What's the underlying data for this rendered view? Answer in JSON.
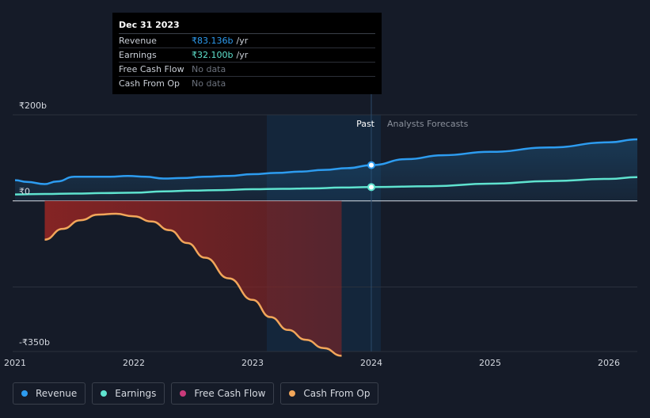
{
  "chart_data": {
    "type": "line",
    "title": "",
    "xlabel": "",
    "ylabel": "",
    "currency_symbol": "₹",
    "y_tick_labels": [
      "₹200b",
      "₹0",
      "-₹350b"
    ],
    "y_ticks": [
      200,
      0,
      -350
    ],
    "x_tick_labels": [
      "2021",
      "2022",
      "2023",
      "2024",
      "2025",
      "2026"
    ],
    "x_ticks": [
      2021,
      2022,
      2023,
      2024,
      2025,
      2026
    ],
    "xlim": [
      2020.98,
      2026.24
    ],
    "ylim": [
      -350,
      200
    ],
    "past_label": "Past",
    "forecast_label": "Analysts Forecasts",
    "forecast_start": 2024.0,
    "legend_position": "bottom-left",
    "series": [
      {
        "name": "Revenue",
        "color": "#2d9cf0",
        "x": [
          2021.0,
          2021.1,
          2021.25,
          2021.35,
          2021.5,
          2021.65,
          2021.8,
          2021.95,
          2022.1,
          2022.25,
          2022.4,
          2022.6,
          2022.8,
          2023.0,
          2023.2,
          2023.4,
          2023.6,
          2023.8,
          2024.0,
          2024.3,
          2024.6,
          2025.0,
          2025.5,
          2026.0,
          2026.24
        ],
        "y": [
          48,
          44,
          39,
          45,
          56,
          56,
          56,
          58,
          56,
          52,
          53,
          56,
          58,
          62,
          65,
          68,
          72,
          76,
          83,
          97,
          106,
          114,
          124,
          136,
          143
        ]
      },
      {
        "name": "Earnings",
        "color": "#5fe3cf",
        "x": [
          2021.0,
          2021.25,
          2021.5,
          2021.75,
          2022.0,
          2022.25,
          2022.5,
          2022.75,
          2023.0,
          2023.25,
          2023.5,
          2023.75,
          2024.0,
          2024.5,
          2025.0,
          2025.5,
          2026.0,
          2026.24
        ],
        "y": [
          15,
          16,
          17,
          18,
          19,
          22,
          24,
          25,
          27,
          28,
          29,
          31,
          32,
          34,
          40,
          46,
          51,
          55
        ]
      },
      {
        "name": "Free Cash Flow",
        "color": "#c93a7a",
        "x": [],
        "y": []
      },
      {
        "name": "Cash From Op",
        "color": "#f2a65a",
        "x": [
          2021.25,
          2021.4,
          2021.55,
          2021.7,
          2021.85,
          2022.0,
          2022.15,
          2022.3,
          2022.45,
          2022.6,
          2022.8,
          2023.0,
          2023.15,
          2023.3,
          2023.45,
          2023.6,
          2023.75
        ],
        "y": [
          -90,
          -65,
          -45,
          -32,
          -30,
          -36,
          -48,
          -68,
          -98,
          -132,
          -180,
          -230,
          -270,
          -300,
          -323,
          -342,
          -360
        ]
      }
    ]
  },
  "tooltip": {
    "date": "Dec 31 2023",
    "rows": [
      {
        "label": "Revenue",
        "value": "₹83.136b",
        "unit": "/yr"
      },
      {
        "label": "Earnings",
        "value": "₹32.100b",
        "unit": "/yr"
      },
      {
        "label": "Free Cash Flow",
        "value": "No data",
        "unit": ""
      },
      {
        "label": "Cash From Op",
        "value": "No data",
        "unit": ""
      }
    ]
  },
  "legend": [
    {
      "label": "Revenue",
      "color": "#2d9cf0"
    },
    {
      "label": "Earnings",
      "color": "#5fe3cf"
    },
    {
      "label": "Free Cash Flow",
      "color": "#c93a7a"
    },
    {
      "label": "Cash From Op",
      "color": "#f2a65a"
    }
  ]
}
